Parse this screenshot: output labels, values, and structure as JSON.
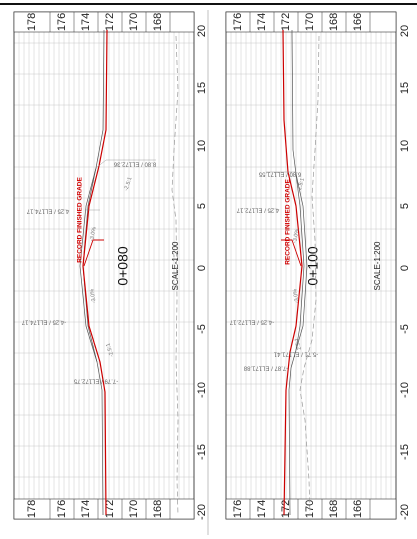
{
  "sheet": {
    "scale_label": "SCALE-1:200",
    "record_label": "RECORD FINISHED GRADE",
    "colors": {
      "finished_grade": "#cc0000",
      "design": "#555555",
      "existing": "#999999",
      "grid": "#c8c8c8"
    }
  },
  "sections": [
    {
      "station": "0+080",
      "elevations": [
        "178",
        "176",
        "174",
        "172",
        "170",
        "168"
      ],
      "offsets": [
        "20",
        "15",
        "10",
        "5",
        "0",
        "-5",
        "-10",
        "-15",
        "-20"
      ],
      "annotations": {
        "right_top": "8.80 / EL172.36",
        "right_mid": "4.25 / EL174.17",
        "left_mid": "-4.25 / EL174.17",
        "left_bottom": "-7.79 / EL172.75"
      },
      "slopes": {
        "right_cross": "-3.0%",
        "left_cross": "-3.0%",
        "right_side": "-2.5:1",
        "left_side": "-2.5:1"
      }
    },
    {
      "station": "0+100",
      "elevations": [
        "176",
        "174",
        "172",
        "170",
        "168",
        "166"
      ],
      "offsets": [
        "20",
        "15",
        "10",
        "5",
        "0",
        "-5",
        "-10",
        "-15",
        "-20"
      ],
      "annotations": {
        "right_top": "6.80 / EL171.55",
        "right_mid": "4.25 / EL172.17",
        "left_mid": "-4.25 / EL172.17",
        "left_mid2": "-5.71 / EL171.41",
        "left_bottom": "-7.87 / EL171.88"
      },
      "slopes": {
        "right_cross": "-3.0%",
        "left_cross": "-3.0%",
        "right_side": "2.5:1",
        "left_side": "2.5:1"
      }
    }
  ]
}
